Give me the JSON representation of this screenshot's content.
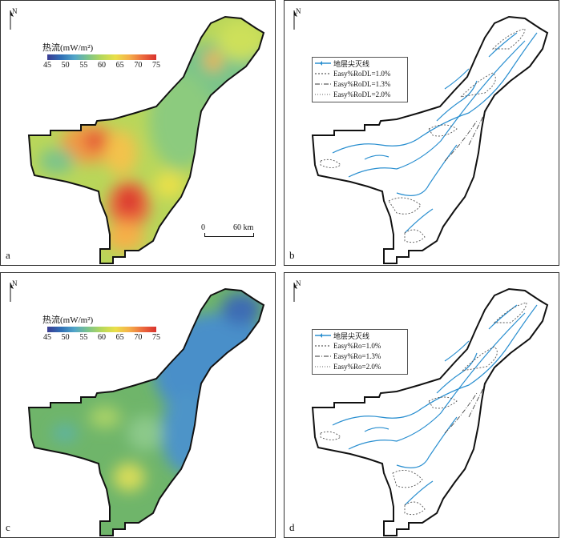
{
  "panels": [
    {
      "letter": "a",
      "north": "N"
    },
    {
      "letter": "b",
      "north": "N"
    },
    {
      "letter": "c",
      "north": "N"
    },
    {
      "letter": "d",
      "north": "N"
    }
  ],
  "colorbar": {
    "title": "热流(mW/m²)",
    "ticks": [
      "45",
      "50",
      "55",
      "60",
      "65",
      "70",
      "75"
    ]
  },
  "scalebar": {
    "left_label": "0",
    "right_label": "60 km"
  },
  "legend_b": [
    {
      "label": "地层尖灭线",
      "style": "solid-blue"
    },
    {
      "label": "Easy%RoDL=1.0%",
      "style": "dashed"
    },
    {
      "label": "Easy%RoDL=1.3%",
      "style": "dashdot"
    },
    {
      "label": "Easy%RoDL=2.0%",
      "style": "dotted"
    }
  ],
  "legend_d": [
    {
      "label": "地层尖灭线",
      "style": "solid-blue"
    },
    {
      "label": "Easy%Ro=1.0%",
      "style": "dashed"
    },
    {
      "label": "Easy%Ro=1.3%",
      "style": "dashdot"
    },
    {
      "label": "Easy%Ro=2.0%",
      "style": "dotted"
    }
  ],
  "colors": {
    "outline": "#111111",
    "pinchout": "#2a8fd0",
    "heat_low": "#3b3c93",
    "heat_high": "#d9322e",
    "panel_a_base": "#b9d65a",
    "panel_c_base": "#6fb56a"
  }
}
